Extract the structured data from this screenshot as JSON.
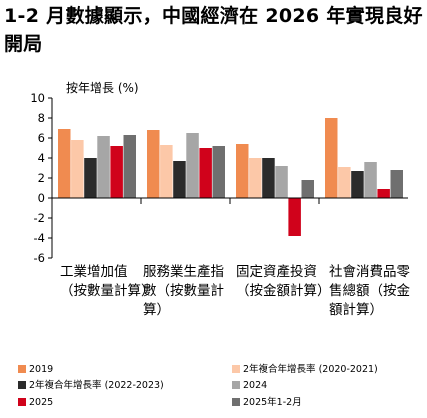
{
  "title": "1-2 月數據顯示，中國經濟在 2026 年實現良好開局",
  "chart_data": {
    "type": "bar",
    "ylabel": "按年增長 (%)",
    "ylim": [
      -6,
      10
    ],
    "yticks": [
      -6,
      -4,
      -2,
      0,
      2,
      4,
      6,
      8,
      10
    ],
    "categories": [
      "工業增加值（按數量計算）",
      "服務業生產指數（按數量計算）",
      "固定資產投資（按金額計算）",
      "社會消費品零售總額（按金額計算）"
    ],
    "series": [
      {
        "name": "2019",
        "color": "#f08b50",
        "values": [
          6.9,
          6.8,
          5.4,
          8.0
        ]
      },
      {
        "name": "2年複合年增長率 (2020-2021)",
        "color": "#fcc8a8",
        "values": [
          5.8,
          5.3,
          4.0,
          3.1
        ]
      },
      {
        "name": "2年複合年增長率 (2022-2023)",
        "color": "#2b2b2b",
        "values": [
          4.0,
          3.7,
          4.0,
          2.7
        ]
      },
      {
        "name": "2024",
        "color": "#a6a6a6",
        "values": [
          6.2,
          6.5,
          3.2,
          3.6
        ]
      },
      {
        "name": "2025",
        "color": "#d0021b",
        "values": [
          5.2,
          5.0,
          -3.8,
          0.9
        ]
      },
      {
        "name": "2025年1-2月",
        "color": "#6f6f6f",
        "values": [
          6.3,
          5.2,
          1.8,
          2.8
        ]
      }
    ]
  }
}
